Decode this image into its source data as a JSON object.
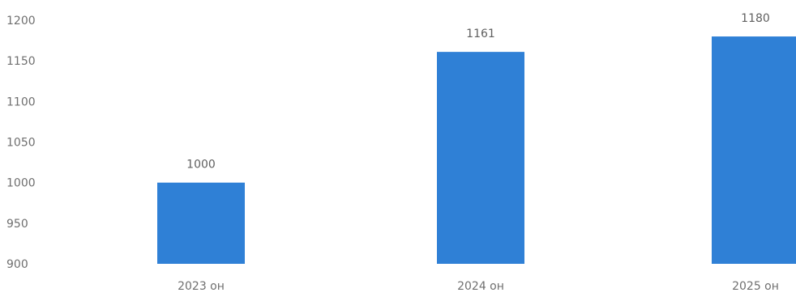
{
  "chart_data": {
    "type": "bar",
    "categories": [
      "2023 он",
      "2024 он",
      "2025 он"
    ],
    "values": [
      1000,
      1161,
      1180
    ],
    "data_labels": [
      "1000",
      "1161",
      "1180"
    ],
    "title": "",
    "xlabel": "",
    "ylabel": "",
    "ylim": [
      900,
      1200
    ],
    "yticks": [
      900,
      950,
      1000,
      1050,
      1100,
      1150,
      1200
    ],
    "ytick_labels": [
      "900",
      "950",
      "1000",
      "1050",
      "1100",
      "1150",
      "1200"
    ],
    "grid": false,
    "legend": "none",
    "bar_color": "#2f80d6"
  }
}
